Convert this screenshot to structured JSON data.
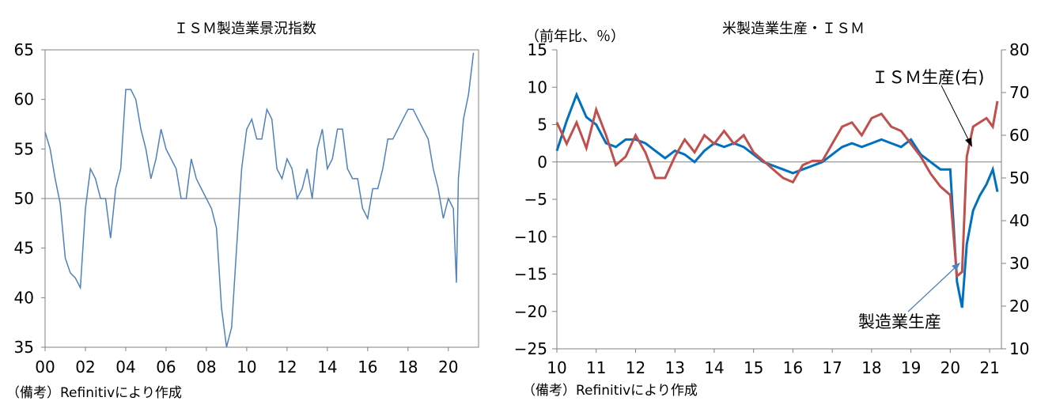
{
  "chart_data": [
    {
      "type": "line",
      "title": "ＩＳＭ製造業景況指数",
      "note": "（備考）Refinitivにより作成",
      "x_ticks": [
        "00",
        "02",
        "04",
        "06",
        "08",
        "10",
        "12",
        "14",
        "16",
        "18",
        "20"
      ],
      "xlim": [
        2000,
        2021.5
      ],
      "ylim": [
        35,
        65
      ],
      "y_ticks": [
        35,
        40,
        45,
        50,
        55,
        60,
        65
      ],
      "reference_line": 50,
      "grid": false,
      "colors": {
        "series": "#4f81bd",
        "axis": "#808080"
      },
      "series": [
        {
          "name": "",
          "x": [
            2000.0,
            2000.25,
            2000.5,
            2000.75,
            2001.0,
            2001.25,
            2001.5,
            2001.75,
            2002.0,
            2002.25,
            2002.5,
            2002.75,
            2003.0,
            2003.25,
            2003.5,
            2003.75,
            2004.0,
            2004.25,
            2004.5,
            2004.75,
            2005.0,
            2005.25,
            2005.5,
            2005.75,
            2006.0,
            2006.25,
            2006.5,
            2006.75,
            2007.0,
            2007.25,
            2007.5,
            2007.75,
            2008.0,
            2008.25,
            2008.5,
            2008.75,
            2009.0,
            2009.25,
            2009.5,
            2009.75,
            2010.0,
            2010.25,
            2010.5,
            2010.75,
            2011.0,
            2011.25,
            2011.5,
            2011.75,
            2012.0,
            2012.25,
            2012.5,
            2012.75,
            2013.0,
            2013.25,
            2013.5,
            2013.75,
            2014.0,
            2014.25,
            2014.5,
            2014.75,
            2015.0,
            2015.25,
            2015.5,
            2015.75,
            2016.0,
            2016.25,
            2016.5,
            2016.75,
            2017.0,
            2017.25,
            2017.5,
            2017.75,
            2018.0,
            2018.25,
            2018.5,
            2018.75,
            2019.0,
            2019.25,
            2019.5,
            2019.75,
            2020.0,
            2020.25,
            2020.4,
            2020.5,
            2020.75,
            2021.0,
            2021.25
          ],
          "values": [
            56.7,
            55.0,
            52.0,
            49.5,
            44.0,
            42.5,
            42.0,
            41.0,
            49.0,
            53.0,
            52.0,
            50.0,
            50.0,
            46.0,
            51.0,
            53.0,
            61.0,
            61.0,
            60.0,
            57.0,
            55.0,
            52.0,
            54.0,
            57.0,
            55.0,
            54.0,
            53.0,
            50.0,
            50.0,
            54.0,
            52.0,
            51.0,
            50.0,
            49.0,
            47.0,
            39.0,
            35.0,
            37.0,
            45.0,
            53.0,
            57.0,
            58.0,
            56.0,
            56.0,
            59.0,
            58.0,
            53.0,
            52.0,
            54.0,
            53.0,
            50.0,
            51.0,
            53.0,
            50.0,
            55.0,
            57.0,
            53.0,
            54.0,
            57.0,
            57.0,
            53.0,
            52.0,
            52.0,
            49.0,
            48.0,
            51.0,
            51.0,
            53.0,
            56.0,
            56.0,
            57.0,
            58.0,
            59.0,
            59.0,
            58.0,
            57.0,
            56.0,
            53.0,
            51.0,
            48.0,
            50.0,
            49.0,
            41.5,
            52.0,
            58.0,
            60.5,
            64.7
          ]
        }
      ]
    },
    {
      "type": "line",
      "title": "米製造業生産・ＩＳＭ",
      "ylabel_left": "（前年比、％）",
      "note": "（備考）Refinitivにより作成",
      "x_ticks": [
        "10",
        "11",
        "12",
        "13",
        "14",
        "15",
        "16",
        "17",
        "18",
        "19",
        "20",
        "21"
      ],
      "xlim": [
        2010,
        2021.3
      ],
      "ylim_left": [
        -25,
        15
      ],
      "y_ticks_left": [
        -25,
        -20,
        -15,
        -10,
        -5,
        0,
        5,
        10,
        15
      ],
      "ylim_right": [
        10,
        80
      ],
      "y_ticks_right": [
        10,
        20,
        30,
        40,
        50,
        60,
        70,
        80
      ],
      "reference_line": 0,
      "grid": false,
      "colors": {
        "production": "#0070c0",
        "ism": "#c0504d",
        "axis": "#808080"
      },
      "series": [
        {
          "name": "製造業生産",
          "axis": "left",
          "x": [
            2010.0,
            2010.25,
            2010.5,
            2010.75,
            2011.0,
            2011.25,
            2011.5,
            2011.75,
            2012.0,
            2012.25,
            2012.5,
            2012.75,
            2013.0,
            2013.25,
            2013.5,
            2013.75,
            2014.0,
            2014.25,
            2014.5,
            2014.75,
            2015.0,
            2015.25,
            2015.5,
            2015.75,
            2016.0,
            2016.25,
            2016.5,
            2016.75,
            2017.0,
            2017.25,
            2017.5,
            2017.75,
            2018.0,
            2018.25,
            2018.5,
            2018.75,
            2019.0,
            2019.25,
            2019.5,
            2019.75,
            2020.0,
            2020.17,
            2020.3,
            2020.42,
            2020.58,
            2020.75,
            2020.92,
            2021.08,
            2021.2
          ],
          "values": [
            1.5,
            5.5,
            9.0,
            6.0,
            5.0,
            2.5,
            2.0,
            3.0,
            3.0,
            2.5,
            1.5,
            0.5,
            1.5,
            1.0,
            0.0,
            1.5,
            2.5,
            2.0,
            2.5,
            2.0,
            1.0,
            0.0,
            -0.5,
            -1.0,
            -1.5,
            -1.0,
            -0.5,
            0.0,
            1.0,
            2.0,
            2.5,
            2.0,
            2.5,
            3.0,
            2.5,
            2.0,
            3.0,
            1.0,
            0.0,
            -1.0,
            -1.0,
            -16.0,
            -19.5,
            -11.0,
            -6.5,
            -4.5,
            -3.0,
            -1.0,
            -4.0
          ]
        },
        {
          "name": "ＩＳＭ生産(右)",
          "axis": "right",
          "x": [
            2010.0,
            2010.25,
            2010.5,
            2010.75,
            2011.0,
            2011.25,
            2011.5,
            2011.75,
            2012.0,
            2012.25,
            2012.5,
            2012.75,
            2013.0,
            2013.25,
            2013.5,
            2013.75,
            2014.0,
            2014.25,
            2014.5,
            2014.75,
            2015.0,
            2015.25,
            2015.5,
            2015.75,
            2016.0,
            2016.25,
            2016.5,
            2016.75,
            2017.0,
            2017.25,
            2017.5,
            2017.75,
            2018.0,
            2018.25,
            2018.5,
            2018.75,
            2019.0,
            2019.25,
            2019.5,
            2019.75,
            2020.0,
            2020.17,
            2020.3,
            2020.42,
            2020.58,
            2020.75,
            2020.92,
            2021.08,
            2021.2
          ],
          "values": [
            63.0,
            58.0,
            63.0,
            57.0,
            66.0,
            60.0,
            53.0,
            55.0,
            60.0,
            56.0,
            50.0,
            50.0,
            55.0,
            59.0,
            56.0,
            60.0,
            58.0,
            61.0,
            58.0,
            60.0,
            56.0,
            54.0,
            52.0,
            50.0,
            49.0,
            53.0,
            54.0,
            54.0,
            58.0,
            62.0,
            63.0,
            60.0,
            64.0,
            65.0,
            62.0,
            61.0,
            58.0,
            55.0,
            51.0,
            48.0,
            46.0,
            27.0,
            28.0,
            55.0,
            62.0,
            63.0,
            64.0,
            62.0,
            68.0
          ]
        }
      ]
    }
  ]
}
